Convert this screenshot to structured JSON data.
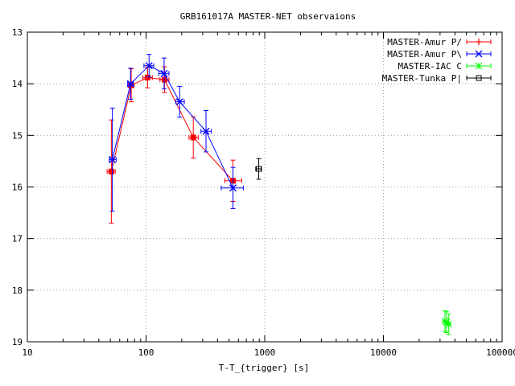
{
  "chart_data": {
    "type": "scatter",
    "title": "GRB161017A MASTER-NET observaions",
    "xlabel": "T-T_{trigger} [s]",
    "ylabel": "",
    "x_scale": "log",
    "xlim": [
      10,
      100000
    ],
    "ylim": [
      13,
      19
    ],
    "y_inverted": true,
    "x_tick_labels": [
      "10",
      "100",
      "1000",
      "10000",
      "100000"
    ],
    "x_tick_values": [
      10,
      100,
      1000,
      10000,
      100000
    ],
    "y_tick_labels": [
      "13",
      "14",
      "15",
      "16",
      "17",
      "18",
      "19"
    ],
    "y_tick_values": [
      13,
      14,
      15,
      16,
      17,
      18,
      19
    ],
    "grid": true,
    "legend_position": "top-right",
    "series": [
      {
        "name": "MASTER-Amur P/",
        "color": "#ff0000",
        "marker": "plus",
        "connect": true,
        "points": [
          {
            "x": 51,
            "y": 15.7,
            "xerr": [
              47,
              55
            ],
            "yerr": 1.0
          },
          {
            "x": 75,
            "y": 14.03,
            "xerr": [
              71,
              79
            ],
            "yerr": 0.32
          },
          {
            "x": 103,
            "y": 13.88,
            "xerr": [
              94,
              113
            ],
            "yerr": 0.2
          },
          {
            "x": 143,
            "y": 13.92,
            "xerr": [
              131,
              156
            ],
            "yerr": 0.25
          },
          {
            "x": 250,
            "y": 15.04,
            "xerr": [
              230,
              275
            ],
            "yerr": 0.4
          },
          {
            "x": 540,
            "y": 15.88,
            "xerr": [
              460,
              640
            ],
            "yerr": 0.4
          }
        ]
      },
      {
        "name": "MASTER-Amur P\\",
        "color": "#0000ff",
        "marker": "cross",
        "connect": true,
        "points": [
          {
            "x": 52,
            "y": 15.47,
            "xerr": [
              49,
              56
            ],
            "yerr": 1.0
          },
          {
            "x": 74,
            "y": 14.0,
            "xerr": [
              70,
              78
            ],
            "yerr": 0.3
          },
          {
            "x": 106,
            "y": 13.65,
            "xerr": [
              96,
              116
            ],
            "yerr": 0.22
          },
          {
            "x": 142,
            "y": 13.8,
            "xerr": [
              128,
              156
            ],
            "yerr": 0.3
          },
          {
            "x": 192,
            "y": 14.35,
            "xerr": [
              178,
              210
            ],
            "yerr": 0.3
          },
          {
            "x": 320,
            "y": 14.92,
            "xerr": [
              290,
              355
            ],
            "yerr": 0.4
          },
          {
            "x": 540,
            "y": 16.02,
            "xerr": [
              430,
              660
            ],
            "yerr": 0.4
          }
        ]
      },
      {
        "name": "MASTER-IAC C",
        "color": "#00ff00",
        "marker": "star",
        "connect": false,
        "points": [
          {
            "x": 33000,
            "y": 18.6,
            "xerr": [
              32000,
              34000
            ],
            "yerr": 0.2
          },
          {
            "x": 34000,
            "y": 18.62,
            "xerr": [
              33000,
              35000
            ],
            "yerr": 0.2
          },
          {
            "x": 35500,
            "y": 18.66,
            "xerr": [
              34500,
              36500
            ],
            "yerr": 0.2
          }
        ]
      },
      {
        "name": "MASTER-Tunka P|",
        "color": "#000000",
        "marker": "square",
        "connect": false,
        "points": [
          {
            "x": 890,
            "y": 15.65,
            "xerr": [
              840,
              940
            ],
            "yerr": 0.2
          }
        ]
      }
    ]
  }
}
